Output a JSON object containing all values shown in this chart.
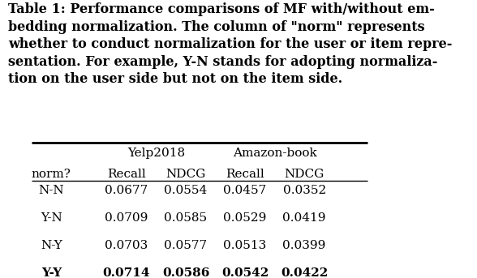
{
  "caption_lines": [
    "Table 1: Performance comparisons of MF with/without em-",
    "bedding normalization. The column of \"norm\" represents",
    "whether to conduct normalization for the user or item repre-",
    "sentation. For example, Y-N stands for adopting normaliza-",
    "tion on the user side but not on the item side."
  ],
  "col_header_row2": [
    "norm?",
    "Recall",
    "NDCG",
    "Recall",
    "NDCG"
  ],
  "rows": [
    [
      "N-N",
      "0.0677",
      "0.0554",
      "0.0457",
      "0.0352"
    ],
    [
      "Y-N",
      "0.0709",
      "0.0585",
      "0.0529",
      "0.0419"
    ],
    [
      "N-Y",
      "0.0703",
      "0.0577",
      "0.0513",
      "0.0399"
    ],
    [
      "Y-Y",
      "0.0714",
      "0.0586",
      "0.0542",
      "0.0422"
    ]
  ],
  "bold_row_index": 3,
  "background_color": "#ffffff",
  "text_color": "#000000",
  "caption_fontsize": 11.5,
  "table_fontsize": 11.0
}
